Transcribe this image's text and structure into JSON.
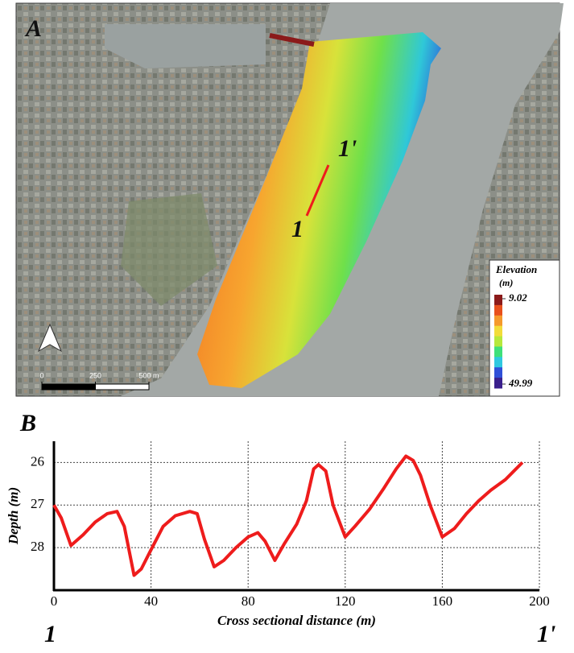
{
  "chart_data": [
    {
      "type": "map",
      "panel_label": "A",
      "section_start": "1",
      "section_end": "1'",
      "colorbar": {
        "title": "Elevation",
        "unit": "(m)",
        "ticks": [
          9.02,
          49.99
        ],
        "colors": [
          "#8b1a1a",
          "#e8501c",
          "#f59a2c",
          "#f2dc3a",
          "#b6e83c",
          "#3fe07a",
          "#2fc8e0",
          "#3050d8",
          "#3a1f8c"
        ]
      },
      "scale_bar": {
        "ticks": [
          0,
          250,
          {
            "value": 500,
            "label": "500 m"
          }
        ]
      }
    },
    {
      "type": "line",
      "panel_label": "B",
      "xlabel": "Cross sectional distance (m)",
      "ylabel": "Depth (m)",
      "x": [
        0,
        3,
        7,
        12,
        17,
        22,
        26,
        29,
        33,
        36,
        40,
        45,
        50,
        56,
        59,
        62,
        66,
        70,
        75,
        80,
        84,
        87,
        91,
        95,
        100,
        104,
        107,
        109,
        112,
        115,
        120,
        124,
        130,
        136,
        141,
        145,
        148,
        151,
        155,
        160,
        165,
        170,
        175,
        180,
        186,
        193
      ],
      "values": [
        27.0,
        27.3,
        27.95,
        27.7,
        27.4,
        27.2,
        27.15,
        27.5,
        28.65,
        28.5,
        28.05,
        27.5,
        27.25,
        27.15,
        27.2,
        27.8,
        28.45,
        28.3,
        28.0,
        27.75,
        27.65,
        27.85,
        28.3,
        27.9,
        27.45,
        26.9,
        26.15,
        26.05,
        26.2,
        27.0,
        27.75,
        27.5,
        27.1,
        26.6,
        26.15,
        25.85,
        25.95,
        26.3,
        27.0,
        27.75,
        27.55,
        27.2,
        26.9,
        26.65,
        26.4,
        26.0
      ],
      "color": "#ee1c1c",
      "xlim": [
        0,
        200
      ],
      "xticks": [
        0,
        40,
        80,
        120,
        160,
        200
      ],
      "ylim": [
        29,
        25.5
      ],
      "yticks": [
        26,
        27,
        28
      ],
      "grid": true,
      "section_start": "1",
      "section_end": "1'"
    }
  ]
}
